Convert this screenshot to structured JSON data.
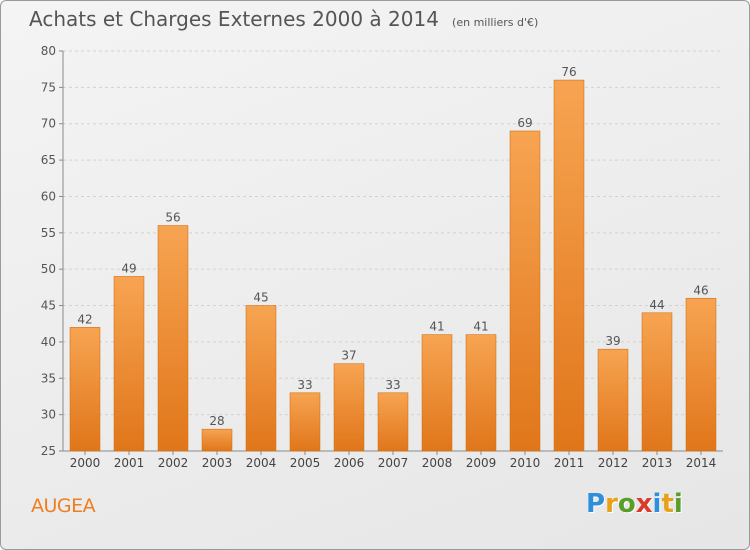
{
  "title": "Achats et Charges Externes 2000 à 2014",
  "unit": "(en milliers d'€)",
  "commune": "AUGEA",
  "logo": {
    "text": "Proxiti",
    "letter_colors": [
      "#2f8fd8",
      "#e8a11b",
      "#5a9e2a",
      "#d93a2a",
      "#2f8fd8",
      "#e8a11b",
      "#5a9e2a"
    ]
  },
  "chart_data": {
    "type": "bar",
    "categories": [
      "2000",
      "2001",
      "2002",
      "2003",
      "2004",
      "2005",
      "2006",
      "2007",
      "2008",
      "2009",
      "2010",
      "2011",
      "2012",
      "2013",
      "2014"
    ],
    "values": [
      42,
      49,
      56,
      28,
      45,
      33,
      37,
      33,
      41,
      41,
      69,
      76,
      39,
      44,
      46
    ],
    "ylim": [
      25,
      80
    ],
    "yticks": [
      25,
      30,
      35,
      40,
      45,
      50,
      55,
      60,
      65,
      70,
      75,
      80
    ],
    "grid": true,
    "bar_color": "#f07e20"
  }
}
